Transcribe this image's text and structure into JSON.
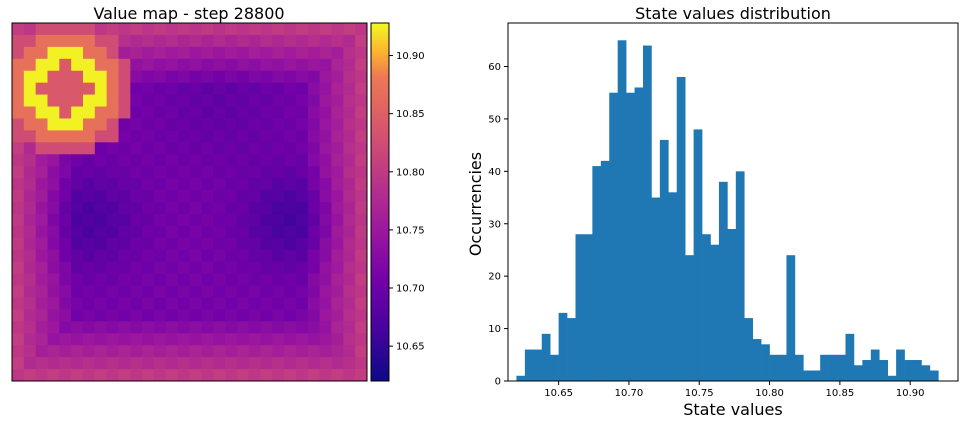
{
  "chart_data": [
    {
      "type": "heatmap",
      "title": "Value map - step 28800",
      "grid_size": [
        30,
        30
      ],
      "colormap": "plasma",
      "value_range": [
        10.62,
        10.928
      ],
      "colorbar_ticks": [
        10.65,
        10.7,
        10.75,
        10.8,
        10.85,
        10.9
      ],
      "colorbar_tick_labels": [
        "10.65",
        "10.70",
        "10.75",
        "10.80",
        "10.85",
        "10.90"
      ],
      "axes_ticks_visible": false
    },
    {
      "type": "bar",
      "subtype": "histogram",
      "title": "State values distribution",
      "xlabel": "State values",
      "ylabel": "Occurrencies",
      "xlim": [
        10.614,
        10.934
      ],
      "ylim": [
        0,
        68.3
      ],
      "bin_start": 10.62,
      "bin_width": 0.006,
      "bar_color": "#1f77b4",
      "values": [
        1,
        6,
        6,
        9,
        5,
        13,
        12,
        28,
        28,
        41,
        42,
        55,
        65,
        55,
        56,
        64,
        35,
        46,
        36,
        58,
        24,
        48,
        28,
        26,
        38,
        29,
        40,
        12,
        8,
        7,
        5,
        5,
        24,
        5,
        2,
        2,
        5,
        5,
        5,
        9,
        3,
        4,
        6,
        4,
        1,
        6,
        4,
        4,
        3,
        2
      ],
      "xticks": [
        10.65,
        10.7,
        10.75,
        10.8,
        10.85,
        10.9
      ],
      "xtick_labels": [
        "10.65",
        "10.70",
        "10.75",
        "10.80",
        "10.85",
        "10.90"
      ],
      "yticks": [
        0,
        10,
        20,
        30,
        40,
        50,
        60
      ],
      "ytick_labels": [
        "0",
        "10",
        "20",
        "30",
        "40",
        "50",
        "60"
      ]
    }
  ]
}
